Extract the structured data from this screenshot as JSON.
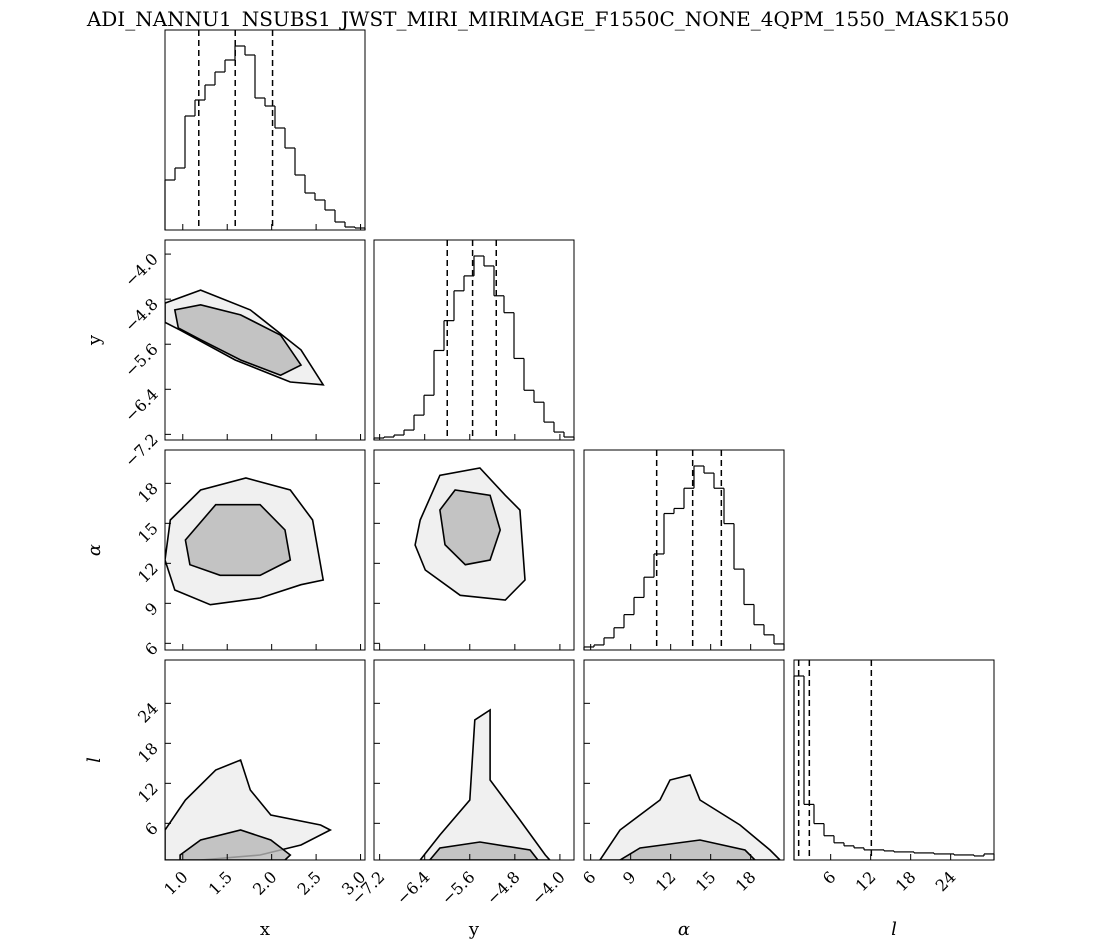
{
  "chart_data": {
    "type": "corner",
    "title": "ADI_NANNU1_NSUBS1_JWST_MIRI_MIRIMAGE_F1550C_NONE_4QPM_1550_MASK1550",
    "color": "#000000",
    "variables": [
      {
        "label": "x",
        "lim": [
          0.8,
          3.05
        ],
        "ticks": [
          {
            "value": 1.0,
            "label": "1.0"
          },
          {
            "value": 1.5,
            "label": "1.5"
          },
          {
            "value": 2.0,
            "label": "2.0"
          },
          {
            "value": 2.5,
            "label": "2.5"
          },
          {
            "value": 3.0,
            "label": "3.0"
          }
        ],
        "bins": [
          0.8,
          0.9125,
          1.025,
          1.1375,
          1.25,
          1.3625,
          1.475,
          1.5875,
          1.7,
          1.8125,
          1.925,
          2.0375,
          2.15,
          2.2625,
          2.375,
          2.4875,
          2.6,
          2.7125,
          2.825,
          2.9375,
          3.05
        ],
        "counts": [
          50,
          62,
          114,
          130,
          145,
          158,
          170,
          184,
          175,
          132,
          124,
          102,
          82,
          55,
          37,
          30,
          20,
          8,
          3,
          2
        ],
        "quantiles": [
          1.18,
          1.59,
          2.01
        ]
      },
      {
        "label": "y",
        "lim": [
          -7.3,
          -3.75
        ],
        "ticks": [
          {
            "value": -7.2,
            "label": "−7.2"
          },
          {
            "value": -6.4,
            "label": "−6.4"
          },
          {
            "value": -5.6,
            "label": "−5.6"
          },
          {
            "value": -4.8,
            "label": "−4.8"
          },
          {
            "value": -4.0,
            "label": "−4.0"
          }
        ],
        "bins": [
          -7.3,
          -7.1225,
          -6.945,
          -6.7675,
          -6.59,
          -6.4125,
          -6.235,
          -6.0575,
          -5.88,
          -5.7025,
          -5.525,
          -5.3475,
          -5.17,
          -4.9925,
          -4.815,
          -4.6375,
          -4.46,
          -4.2825,
          -4.105,
          -3.9275,
          -3.75
        ],
        "counts": [
          2,
          3,
          5,
          10,
          25,
          45,
          90,
          120,
          150,
          165,
          185,
          175,
          145,
          128,
          82,
          50,
          38,
          18,
          8,
          3
        ],
        "quantiles": [
          -6.0,
          -5.55,
          -5.13
        ]
      },
      {
        "label": "α",
        "lim": [
          5.5,
          20.5
        ],
        "ticks": [
          6,
          9,
          12,
          15,
          18
        ],
        "bins": [
          5.5,
          6.25,
          7,
          7.75,
          8.5,
          9.25,
          10,
          10.75,
          11.5,
          12.25,
          13,
          13.75,
          14.5,
          15.25,
          16,
          16.75,
          17.5,
          18.25,
          19,
          19.75,
          20.5
        ],
        "counts": [
          3,
          5,
          12,
          22,
          35,
          52,
          72,
          95,
          135,
          140,
          160,
          182,
          175,
          160,
          125,
          80,
          45,
          25,
          15,
          6
        ],
        "quantiles": [
          10.95,
          13.65,
          15.8
        ]
      },
      {
        "label": "l",
        "lim": [
          0.5,
          30.5
        ],
        "ticks": [
          6,
          12,
          18,
          24
        ],
        "bins": [
          0.5,
          2,
          3.5,
          5,
          6.5,
          8,
          9.5,
          11,
          12.5,
          14,
          15.5,
          17,
          18.5,
          20,
          21.5,
          23,
          24.5,
          26,
          27.5,
          29,
          30.5
        ],
        "counts": [
          182,
          55,
          36,
          24,
          17,
          14,
          12,
          10,
          10,
          9,
          8,
          8,
          7,
          7,
          6,
          6,
          5,
          5,
          4,
          6
        ],
        "quantiles": [
          1.2,
          2.8,
          12.1
        ]
      }
    ],
    "panels": [
      {
        "contours": [
          {
            "x": [
              0.8,
              1.2,
              1.76,
              2.33,
              2.58,
              2.21,
              1.59,
              0.97,
              0.8
            ],
            "y": [
              -4.87,
              -4.64,
              -4.99,
              -5.7,
              -6.32,
              -6.27,
              -5.88,
              -5.35,
              -5.21
            ]
          },
          {
            "x": [
              0.91,
              1.2,
              1.65,
              2.1,
              2.33,
              2.1,
              1.65,
              1.2,
              0.95
            ],
            "y": [
              -4.99,
              -4.9,
              -5.08,
              -5.44,
              -5.97,
              -6.15,
              -5.88,
              -5.52,
              -5.31
            ]
          }
        ]
      },
      {
        "contours": [
          {
            "x": [
              0.86,
              1.2,
              1.71,
              2.21,
              2.46,
              2.58,
              2.33,
              1.87,
              1.31,
              0.91,
              0.8
            ],
            "y": [
              15.25,
              17.5,
              18.4,
              17.5,
              15.25,
              10.75,
              10.4,
              9.4,
              8.9,
              10.0,
              12.25
            ]
          },
          {
            "x": [
              1.03,
              1.37,
              1.87,
              2.15,
              2.21,
              1.87,
              1.42,
              1.08
            ],
            "y": [
              13.75,
              16.4,
              16.4,
              14.5,
              12.25,
              11.1,
              11.1,
              11.9
            ]
          }
        ]
      },
      {
        "contours": [
          {
            "x": [
              -6.48,
              -6.13,
              -5.42,
              -4.97,
              -4.71,
              -4.62,
              -4.97,
              -5.77,
              -6.39,
              -6.57
            ],
            "y": [
              15.25,
              18.6,
              19.15,
              17.1,
              16.0,
              10.75,
              9.25,
              9.6,
              11.5,
              13.375
            ]
          },
          {
            "x": [
              -6.13,
              -5.86,
              -5.24,
              -5.06,
              -5.24,
              -5.68,
              -6.04
            ],
            "y": [
              16.0,
              17.5,
              17.1,
              14.5,
              12.25,
              11.9,
              13.4
            ]
          }
        ]
      },
      {
        "contours": [
          {
            "x": [
              0.8,
              1.03,
              1.37,
              1.65,
              1.76,
              1.99,
              2.55,
              2.66,
              2.33,
              1.87,
              1.2,
              0.8
            ],
            "y": [
              5,
              9.5,
              14,
              15.5,
              11,
              7.25,
              5.75,
              5,
              2.75,
              1.25,
              0.5,
              0.5
            ]
          },
          {
            "x": [
              0.97,
              1.2,
              1.65,
              1.99,
              2.21,
              2.15,
              0.97
            ],
            "y": [
              1.25,
              3.5,
              5,
              3.5,
              1.25,
              0.5,
              0.5
            ]
          }
        ]
      },
      {
        "contours": [
          {
            "x": [
              -6.48,
              -6.13,
              -5.6,
              -5.51,
              -5.24,
              -5.24,
              -4.71,
              -4.26,
              -4.18
            ],
            "y": [
              0.5,
              4.25,
              9.5,
              21.5,
              23,
              12.5,
              6.5,
              1.25,
              0.5
            ]
          },
          {
            "x": [
              -6.31,
              -6.13,
              -5.42,
              -4.53,
              -4.39
            ],
            "y": [
              0.5,
              2.3,
              3.2,
              2.0,
              0.5
            ]
          }
        ]
      },
      {
        "contours": [
          {
            "x": [
              6.7,
              8.2,
              11.2,
              11.95,
              13.45,
              14.2,
              17.2,
              19.45,
              20.2
            ],
            "y": [
              0.5,
              5,
              9.5,
              12.5,
              13.25,
              9.5,
              5.75,
              2,
              0.5
            ]
          },
          {
            "x": [
              8.2,
              9.7,
              14.2,
              17.575,
              18.325
            ],
            "y": [
              0.5,
              2.3,
              3.5,
              2,
              0.5
            ]
          }
        ]
      }
    ]
  }
}
